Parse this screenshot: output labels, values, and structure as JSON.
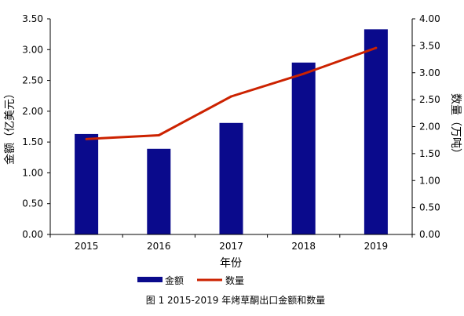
{
  "chart_data": {
    "type": "bar",
    "categories": [
      "2015",
      "2016",
      "2017",
      "2018",
      "2019"
    ],
    "series": [
      {
        "name": "金额",
        "type": "bar",
        "axis": "left",
        "values": [
          1.63,
          1.39,
          1.81,
          2.79,
          3.33
        ]
      },
      {
        "name": "数量",
        "type": "line",
        "axis": "right",
        "values": [
          1.77,
          1.84,
          2.56,
          2.98,
          3.46
        ]
      }
    ],
    "xlabel": "年份",
    "ylabel_left": "金额（亿美元）",
    "ylabel_right": "数量（万吨）",
    "ylim_left": [
      0,
      3.5
    ],
    "ylim_right": [
      0,
      4.0
    ],
    "yticks_left": [
      "0.00",
      "0.50",
      "1.00",
      "1.50",
      "2.00",
      "2.50",
      "3.00",
      "3.50"
    ],
    "yticks_right": [
      "0.00",
      "0.50",
      "1.00",
      "1.50",
      "2.00",
      "2.50",
      "3.00",
      "3.50",
      "4.00"
    ],
    "legend_position": "bottom",
    "grid": false,
    "colors": {
      "bar": "#0a0a8c",
      "line": "#cc2200"
    },
    "caption": "图 1  2015-2019 年烤草酮出口金额和数量"
  }
}
